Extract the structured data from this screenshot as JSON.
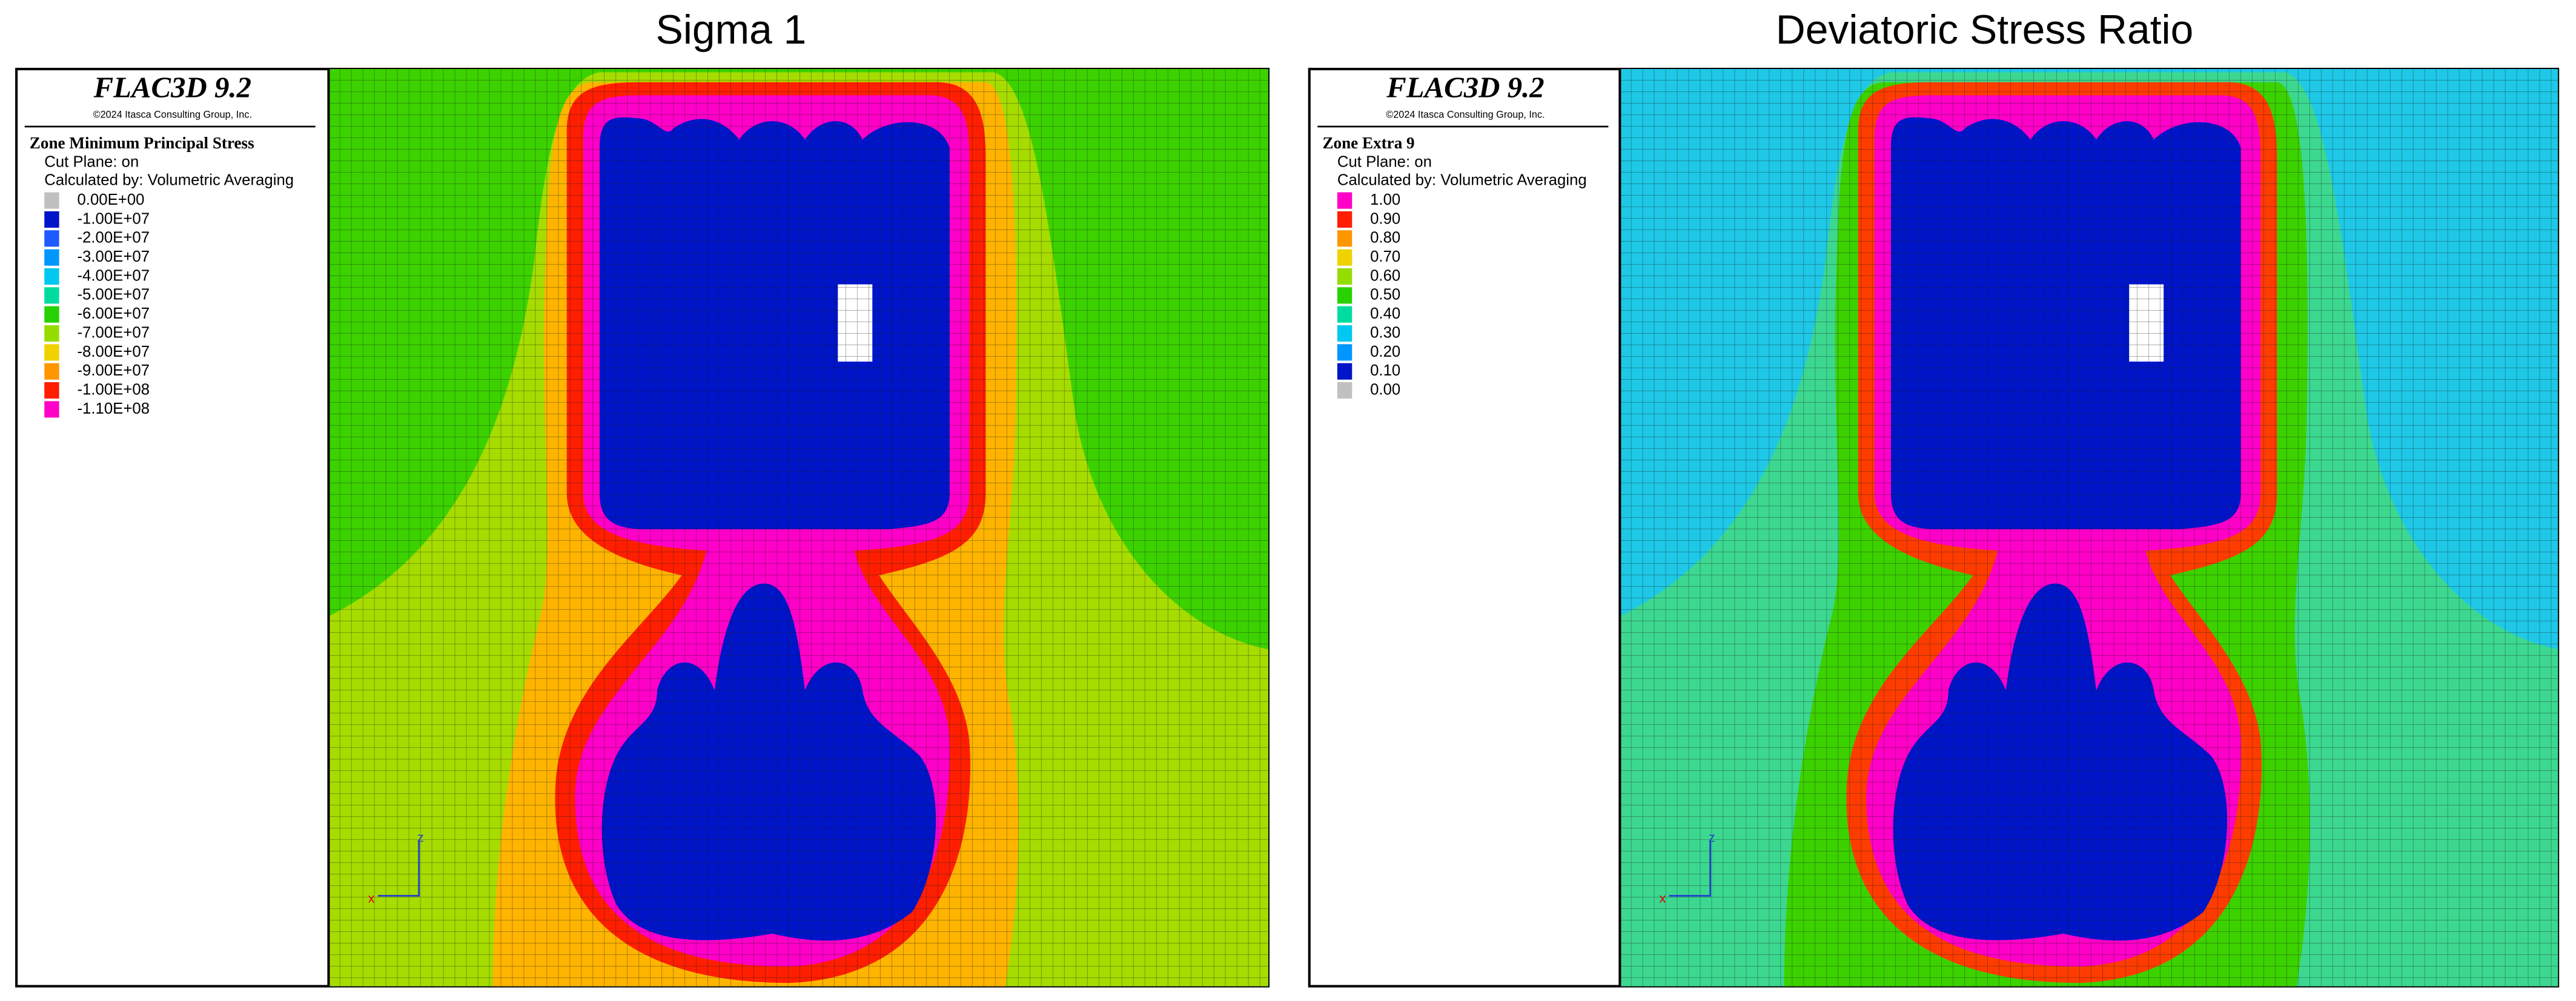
{
  "panels": [
    {
      "title": "Sigma 1",
      "header": {
        "software": "FLAC3D 9.2",
        "copyright": "©2024 Itasca Consulting Group, Inc."
      },
      "legend": {
        "title": "Zone Minimum Principal Stress",
        "lines": [
          "Cut Plane: on",
          "Calculated by: Volumetric Averaging"
        ],
        "entries": [
          {
            "label": "0.00E+00",
            "color": "#c0c0c0"
          },
          {
            "label": "-1.00E+07",
            "color": "#0014c8"
          },
          {
            "label": "-2.00E+07",
            "color": "#1e5aff"
          },
          {
            "label": "-3.00E+07",
            "color": "#0096ff"
          },
          {
            "label": "-4.00E+07",
            "color": "#00c8f0"
          },
          {
            "label": "-5.00E+07",
            "color": "#00dca0"
          },
          {
            "label": "-6.00E+07",
            "color": "#28d200"
          },
          {
            "label": "-7.00E+07",
            "color": "#96dc00"
          },
          {
            "label": "-8.00E+07",
            "color": "#f0d200"
          },
          {
            "label": "-9.00E+07",
            "color": "#ff9600"
          },
          {
            "label": "-1.00E+08",
            "color": "#ff1e00"
          },
          {
            "label": "-1.10E+08",
            "color": "#ff00c8"
          }
        ]
      },
      "axes": {
        "z": "z",
        "x": "x"
      }
    },
    {
      "title": "Deviatoric Stress Ratio",
      "header": {
        "software": "FLAC3D 9.2",
        "copyright": "©2024 Itasca Consulting Group, Inc."
      },
      "legend": {
        "title": "Zone Extra 9",
        "lines": [
          "Cut Plane: on",
          "Calculated by: Volumetric Averaging"
        ],
        "entries": [
          {
            "label": "1.00",
            "color": "#ff00c8"
          },
          {
            "label": "0.90",
            "color": "#ff1e00"
          },
          {
            "label": "0.80",
            "color": "#ff9600"
          },
          {
            "label": "0.70",
            "color": "#f0d200"
          },
          {
            "label": "0.60",
            "color": "#96dc00"
          },
          {
            "label": "0.50",
            "color": "#28d200"
          },
          {
            "label": "0.40",
            "color": "#00dca0"
          },
          {
            "label": "0.30",
            "color": "#00c8f0"
          },
          {
            "label": "0.20",
            "color": "#0096ff"
          },
          {
            "label": "0.10",
            "color": "#0014c8"
          },
          {
            "label": "0.00",
            "color": "#c0c0c0"
          }
        ]
      },
      "axes": {
        "z": "z",
        "x": "x"
      }
    }
  ]
}
